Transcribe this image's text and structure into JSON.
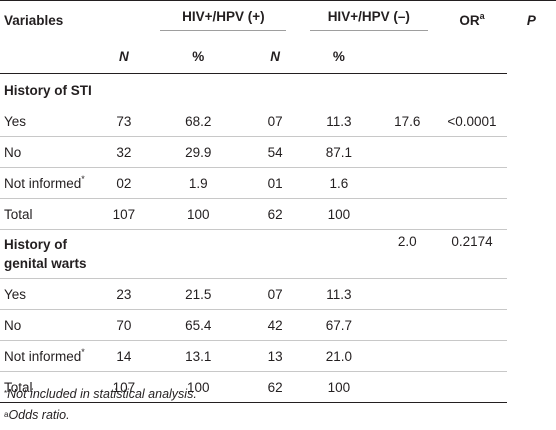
{
  "headers": {
    "variables": "Variables",
    "group_pos": "HIV+/HPV (+)",
    "group_neg": "HIV+/HPV (–)",
    "or": "OR",
    "or_sup": "a",
    "p": "P",
    "n": "N",
    "pct": "%"
  },
  "sections": [
    {
      "title": "History of STI",
      "or": "17.6",
      "p": "<0.0001",
      "rows": [
        {
          "label": "Yes",
          "sup": "",
          "n1": "73",
          "p1": "68.2",
          "n2": "07",
          "p2": "11.3"
        },
        {
          "label": "No",
          "sup": "",
          "n1": "32",
          "p1": "29.9",
          "n2": "54",
          "p2": "87.1"
        },
        {
          "label": "Not informed",
          "sup": "*",
          "n1": "02",
          "p1": "1.9",
          "n2": "01",
          "p2": "1.6"
        },
        {
          "label": "Total",
          "sup": "",
          "n1": "107",
          "p1": "100",
          "n2": "62",
          "p2": "100"
        }
      ]
    },
    {
      "title_line1": "History of",
      "title_line2": "genital warts",
      "or": "2.0",
      "p": "0.2174",
      "rows": [
        {
          "label": "Yes",
          "sup": "",
          "n1": "23",
          "p1": "21.5",
          "n2": "07",
          "p2": "11.3"
        },
        {
          "label": "No",
          "sup": "",
          "n1": "70",
          "p1": "65.4",
          "n2": "42",
          "p2": "67.7"
        },
        {
          "label": "Not informed",
          "sup": "*",
          "n1": "14",
          "p1": "13.1",
          "n2": "13",
          "p2": "21.0"
        },
        {
          "label": "Total",
          "sup": "",
          "n1": "107",
          "p1": "100",
          "n2": "62",
          "p2": "100"
        }
      ]
    }
  ],
  "footnotes": {
    "note1_mark": "*",
    "note1": "Not included in statistical analysis.",
    "note2_mark": "a",
    "note2": "Odds ratio."
  }
}
